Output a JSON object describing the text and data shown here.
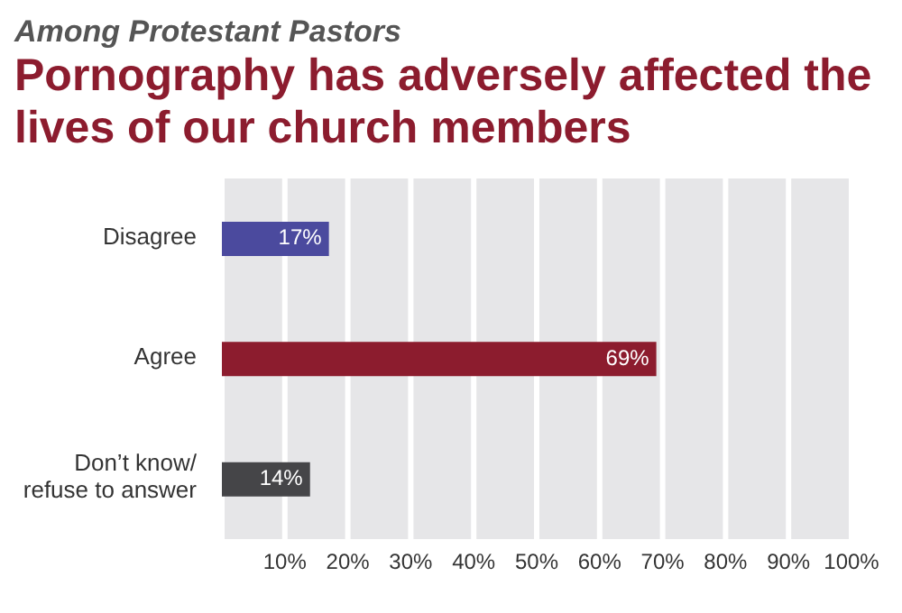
{
  "chart_data": {
    "type": "bar",
    "orientation": "horizontal",
    "subtitle": "Among Protestant Pastors",
    "title": "Pornography has adversely affected the lives of our church members",
    "categories": [
      "Disagree",
      "Agree",
      "Don’t know/ refuse to answer"
    ],
    "values": [
      17,
      69,
      14
    ],
    "colors": [
      "#4b4a9e",
      "#8c1c2e",
      "#454548"
    ],
    "value_labels": [
      "17%",
      "69%",
      "14%"
    ],
    "xlim": [
      0,
      100
    ],
    "xticks": [
      {
        "value": 0,
        "label": null
      },
      {
        "value": 10,
        "label": "10%"
      },
      {
        "value": 20,
        "label": "20%"
      },
      {
        "value": 30,
        "label": "30%"
      },
      {
        "value": 40,
        "label": "40%"
      },
      {
        "value": 50,
        "label": "50%"
      },
      {
        "value": 60,
        "label": "60%"
      },
      {
        "value": 70,
        "label": "70%"
      },
      {
        "value": 80,
        "label": "80%"
      },
      {
        "value": 90,
        "label": "90%"
      },
      {
        "value": 100,
        "label": "100%"
      }
    ],
    "grid": "x"
  }
}
